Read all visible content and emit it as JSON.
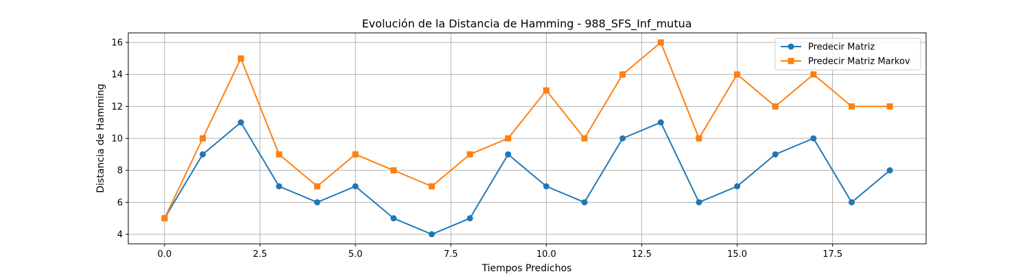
{
  "chart_data": {
    "type": "line",
    "title": "Evolución de la Distancia de Hamming - 988_SFS_Inf_mutua",
    "xlabel": "Tiempos Predichos",
    "ylabel": "Distancia de Hamming",
    "x": [
      0,
      1,
      2,
      3,
      4,
      5,
      6,
      7,
      8,
      9,
      10,
      11,
      12,
      13,
      14,
      15,
      16,
      17,
      18,
      19
    ],
    "xlim": [
      -0.95,
      19.95
    ],
    "ylim": [
      3.4,
      16.6
    ],
    "xticks": [
      0.0,
      2.5,
      5.0,
      7.5,
      10.0,
      12.5,
      15.0,
      17.5
    ],
    "xtick_labels": [
      "0.0",
      "2.5",
      "5.0",
      "7.5",
      "10.0",
      "12.5",
      "15.0",
      "17.5"
    ],
    "yticks": [
      4,
      6,
      8,
      10,
      12,
      14,
      16
    ],
    "ytick_labels": [
      "4",
      "6",
      "8",
      "10",
      "12",
      "14",
      "16"
    ],
    "grid": true,
    "legend_position": "top-right",
    "series": [
      {
        "name": "Predecir Matriz",
        "color": "#1f77b4",
        "marker": "circle",
        "values": [
          5,
          9,
          11,
          7,
          6,
          7,
          5,
          4,
          5,
          9,
          7,
          6,
          10,
          11,
          6,
          7,
          9,
          10,
          6,
          8
        ]
      },
      {
        "name": "Predecir Matriz Markov",
        "color": "#ff7f0e",
        "marker": "square",
        "values": [
          5,
          10,
          15,
          9,
          7,
          9,
          8,
          7,
          9,
          10,
          13,
          10,
          14,
          16,
          10,
          14,
          12,
          14,
          12,
          12
        ]
      }
    ]
  }
}
